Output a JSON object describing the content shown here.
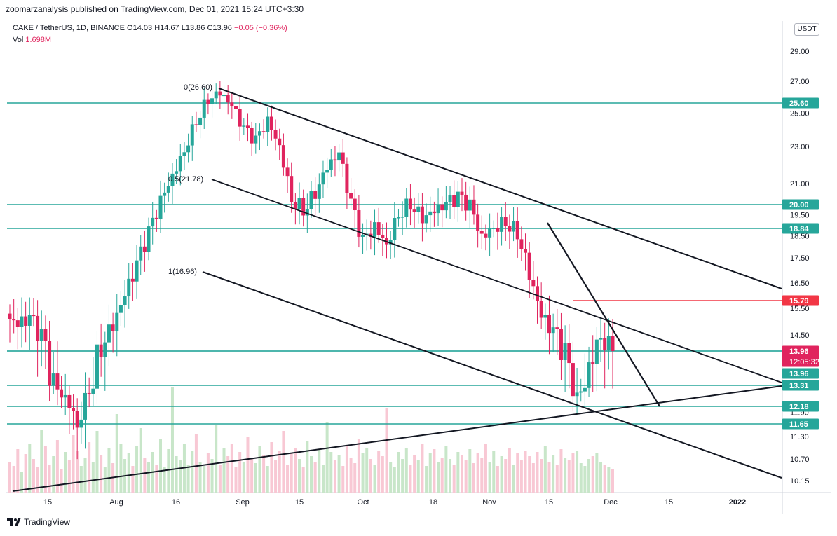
{
  "header": {
    "publisher": "zoomarzanalysis published on TradingView.com, Dec 01, 2021 15:24 UTC+3:30"
  },
  "legend": {
    "pair": "CAKE / TetherUS, 1D, BINANCE",
    "open": "O14.03",
    "high": "H14.67",
    "low": "L13.86",
    "close": "C13.96",
    "change": "−0.05 (−0.36%)",
    "vol_label": "Vol",
    "vol_value": "1.698M"
  },
  "unit_button": "USDT",
  "footer": {
    "brand": "TradingView"
  },
  "chart_data": {
    "type": "candlestick",
    "title": "CAKE / TetherUS, 1D, BINANCE",
    "ylim": [
      10.0,
      31.0
    ],
    "y_axis_labels": [
      "29.00",
      "27.00",
      "25.00",
      "23.00",
      "21.00",
      "19.50",
      "18.50",
      "17.50",
      "16.50",
      "15.50",
      "14.50",
      "11.90",
      "11.30",
      "10.70",
      "10.15"
    ],
    "x_axis_labels": [
      "15",
      "Aug",
      "16",
      "Sep",
      "15",
      "Oct",
      "18",
      "Nov",
      "15",
      "Dec",
      "15",
      "2022"
    ],
    "horizontal_levels": [
      {
        "value": 25.6,
        "label": "25.60",
        "color": "#26a69a"
      },
      {
        "value": 20.0,
        "label": "20.00",
        "color": "#26a69a"
      },
      {
        "value": 18.84,
        "label": "18.84",
        "color": "#26a69a"
      },
      {
        "value": 13.96,
        "label": "13.96",
        "color": "#26a69a"
      },
      {
        "value": 13.31,
        "label": "13.31",
        "color": "#26a69a"
      },
      {
        "value": 12.18,
        "label": "12.18",
        "color": "#26a69a"
      },
      {
        "value": 11.65,
        "label": "11.65",
        "color": "#26a69a"
      }
    ],
    "resistance_level": {
      "value": 15.79,
      "label": "15.79",
      "color": "#f23645"
    },
    "last_price": {
      "value": 13.96,
      "label": "13.96",
      "countdown": "12:05:32",
      "color": "#e0245e"
    },
    "fib_labels": [
      "0(26.60)",
      "0.5(21.78)",
      "1(16.96)"
    ],
    "colors": {
      "up": "#26a69a",
      "down": "#e0245e",
      "vol_up": "#c8e6c9",
      "vol_down": "#f8c8d4",
      "line": "#131722"
    },
    "candles_close_sample": [
      14.9,
      15.1,
      14.4,
      13.2,
      12.6,
      11.6,
      13.1,
      14.2,
      14.9,
      16.0,
      17.2,
      18.6,
      20.1,
      21.4,
      22.8,
      24.6,
      25.9,
      26.3,
      25.4,
      24.0,
      23.3,
      24.5,
      23.0,
      20.3,
      19.8,
      20.6,
      21.9,
      22.6,
      20.0,
      18.2,
      18.9,
      18.1,
      19.6,
      20.1,
      19.4,
      19.7,
      20.0,
      20.3,
      19.9,
      18.4,
      18.9,
      19.2,
      18.7,
      16.9,
      15.2,
      14.6,
      13.9,
      12.6,
      13.6,
      14.5,
      13.96
    ]
  }
}
